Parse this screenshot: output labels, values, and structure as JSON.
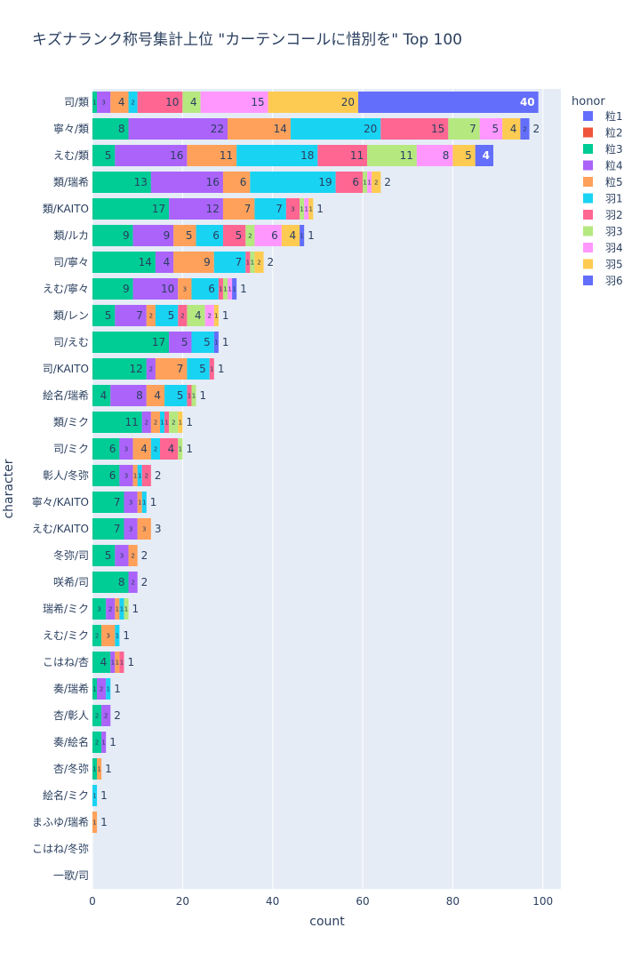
{
  "chart_data": {
    "type": "bar",
    "orientation": "horizontal",
    "barmode": "stack",
    "title": "キズナランク称号集計上位 \"カーテンコールに惜別を\" Top 100",
    "xlabel": "count",
    "ylabel": "character",
    "xlim": [
      0,
      104
    ],
    "xticks": [
      0,
      20,
      40,
      60,
      80,
      100
    ],
    "grid": true,
    "legend_title": "honor",
    "legend_position": "right",
    "categories": [
      "司/類",
      "寧々/類",
      "えむ/類",
      "類/瑞希",
      "類/KAITO",
      "類/ルカ",
      "司/寧々",
      "えむ/寧々",
      "類/レン",
      "司/えむ",
      "司/KAITO",
      "絵名/瑞希",
      "類/ミク",
      "司/ミク",
      "彰人/冬弥",
      "寧々/KAITO",
      "えむ/KAITO",
      "冬弥/司",
      "咲希/司",
      "瑞希/ミク",
      "えむ/ミク",
      "こはね/杏",
      "奏/瑞希",
      "杏/彰人",
      "奏/絵名",
      "杏/冬弥",
      "絵名/ミク",
      "まふゆ/瑞希",
      "こはね/冬弥",
      "一歌/司"
    ],
    "series": [
      {
        "name": "粒1",
        "color": "#636efa",
        "values": [
          0,
          0,
          0,
          0,
          0,
          0,
          0,
          0,
          0,
          0,
          0,
          0,
          0,
          0,
          0,
          0,
          0,
          0,
          0,
          0,
          0,
          0,
          0,
          0,
          0,
          0,
          0,
          0,
          0,
          0
        ]
      },
      {
        "name": "粒2",
        "color": "#EF553B",
        "values": [
          0,
          0,
          0,
          0,
          0,
          0,
          0,
          0,
          0,
          0,
          0,
          0,
          0,
          0,
          0,
          0,
          0,
          0,
          0,
          0,
          0,
          0,
          0,
          0,
          0,
          0,
          0,
          0,
          0,
          0
        ]
      },
      {
        "name": "粒3",
        "color": "#00cc96",
        "values": [
          1,
          8,
          5,
          13,
          17,
          9,
          14,
          9,
          5,
          17,
          12,
          4,
          11,
          6,
          6,
          7,
          7,
          5,
          8,
          3,
          2,
          4,
          1,
          2,
          2,
          1,
          0,
          0,
          0,
          0
        ]
      },
      {
        "name": "粒4",
        "color": "#ab63fa",
        "values": [
          3,
          22,
          16,
          16,
          12,
          9,
          4,
          10,
          7,
          5,
          2,
          8,
          2,
          3,
          3,
          3,
          3,
          3,
          2,
          2,
          0,
          1,
          2,
          2,
          1,
          0,
          0,
          0,
          0,
          0
        ]
      },
      {
        "name": "粒5",
        "color": "#FFA15A",
        "values": [
          4,
          14,
          11,
          6,
          7,
          5,
          9,
          3,
          2,
          0,
          7,
          4,
          2,
          4,
          1,
          1,
          3,
          2,
          0,
          1,
          3,
          1,
          0,
          0,
          0,
          1,
          0,
          1,
          0,
          0
        ]
      },
      {
        "name": "羽1",
        "color": "#19d3f3",
        "values": [
          2,
          20,
          18,
          19,
          7,
          6,
          7,
          6,
          5,
          5,
          5,
          5,
          1,
          2,
          1,
          1,
          0,
          0,
          0,
          1,
          1,
          0,
          1,
          0,
          0,
          0,
          1,
          0,
          0,
          0
        ]
      },
      {
        "name": "羽2",
        "color": "#FF6692",
        "values": [
          10,
          15,
          11,
          6,
          3,
          5,
          1,
          1,
          2,
          0,
          1,
          1,
          1,
          4,
          2,
          0,
          0,
          0,
          0,
          0,
          0,
          1,
          0,
          0,
          0,
          0,
          0,
          0,
          0,
          0
        ]
      },
      {
        "name": "羽3",
        "color": "#B6E880",
        "values": [
          4,
          7,
          11,
          1,
          1,
          2,
          1,
          1,
          4,
          0,
          0,
          1,
          2,
          1,
          0,
          0,
          0,
          0,
          0,
          1,
          0,
          0,
          0,
          0,
          0,
          0,
          0,
          0,
          0,
          0
        ]
      },
      {
        "name": "羽4",
        "color": "#FF97FF",
        "values": [
          15,
          5,
          8,
          1,
          1,
          6,
          0,
          1,
          2,
          0,
          0,
          0,
          0,
          0,
          0,
          0,
          0,
          0,
          0,
          0,
          0,
          0,
          0,
          0,
          0,
          0,
          0,
          0,
          0,
          0
        ]
      },
      {
        "name": "羽5",
        "color": "#FECB52",
        "values": [
          20,
          4,
          5,
          2,
          1,
          4,
          2,
          0,
          1,
          0,
          0,
          0,
          1,
          0,
          0,
          0,
          0,
          0,
          0,
          0,
          0,
          0,
          0,
          0,
          0,
          0,
          0,
          0,
          0,
          0
        ]
      },
      {
        "name": "羽6",
        "color": "#636efa",
        "values": [
          40,
          2,
          4,
          0,
          0,
          1,
          0,
          1,
          0,
          1,
          0,
          0,
          0,
          0,
          0,
          0,
          0,
          0,
          0,
          0,
          0,
          0,
          0,
          0,
          0,
          0,
          0,
          0,
          0,
          0
        ]
      }
    ]
  }
}
